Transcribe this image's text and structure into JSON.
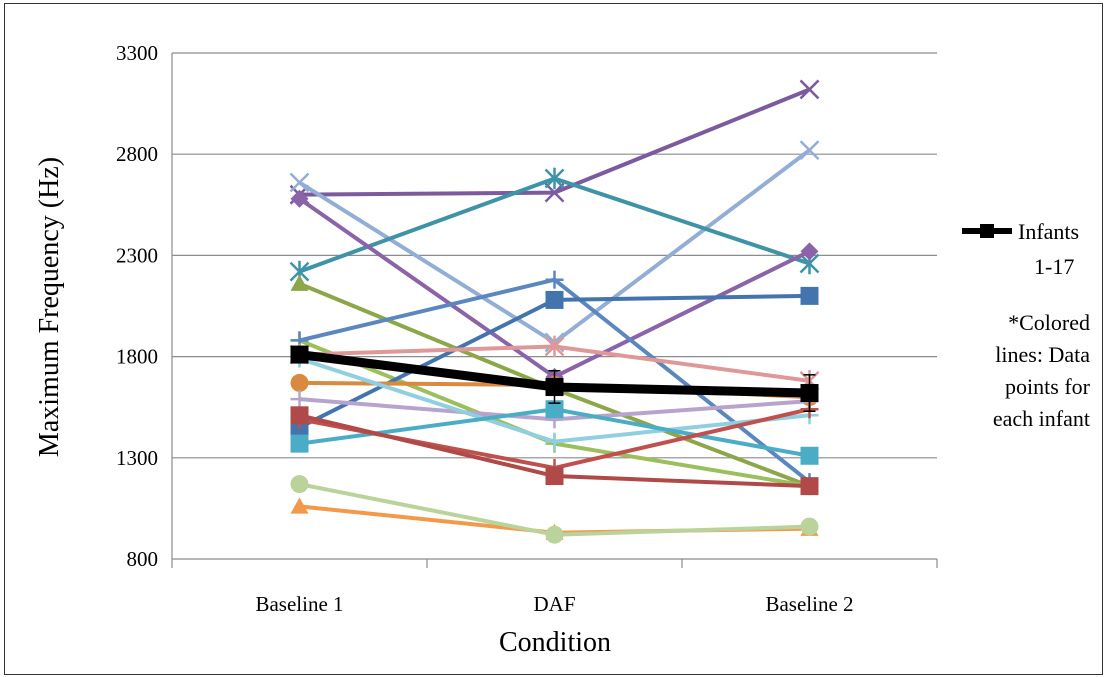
{
  "chart_data": {
    "type": "line",
    "title": "",
    "xlabel": "Condition",
    "ylabel": "Maximum Frequency (Hz)",
    "categories": [
      "Baseline 1",
      "DAF",
      "Baseline 2"
    ],
    "ylim": [
      800,
      3300
    ],
    "yticks": [
      800,
      1300,
      1800,
      2300,
      2800,
      3300
    ],
    "grid": true,
    "legend_position": "right",
    "mean_series": {
      "name_lines": [
        "Infants",
        "1-17"
      ],
      "values": [
        1810,
        1650,
        1620
      ],
      "error": [
        25,
        80,
        90
      ],
      "color": "#000000",
      "marker": "square"
    },
    "series": [
      {
        "values": [
          2600,
          2610,
          3120
        ],
        "color": "#7b5a9e",
        "marker": "x"
      },
      {
        "values": [
          2660,
          1870,
          2820
        ],
        "color": "#93aed6",
        "marker": "x"
      },
      {
        "values": [
          2220,
          2680,
          2260
        ],
        "color": "#3e93a6",
        "marker": "star"
      },
      {
        "values": [
          2580,
          1700,
          2320
        ],
        "color": "#8a63a8",
        "marker": "diamond"
      },
      {
        "values": [
          2160,
          1640,
          1160
        ],
        "color": "#8da64a",
        "marker": "triangle"
      },
      {
        "values": [
          1880,
          1370,
          1160
        ],
        "color": "#9cbf5e",
        "marker": "plus"
      },
      {
        "values": [
          1880,
          2180,
          1180
        ],
        "color": "#5b87c0",
        "marker": "plus"
      },
      {
        "values": [
          1450,
          2080,
          2100
        ],
        "color": "#4474ad",
        "marker": "square"
      },
      {
        "values": [
          1810,
          1850,
          1680
        ],
        "color": "#df9898",
        "marker": "star"
      },
      {
        "values": [
          1670,
          1660,
          1600
        ],
        "color": "#d98a3e",
        "marker": "circle"
      },
      {
        "values": [
          1590,
          1490,
          1580
        ],
        "color": "#b7a4cc",
        "marker": "plus"
      },
      {
        "values": [
          1790,
          1380,
          1510
        ],
        "color": "#8fcfe0",
        "marker": "plus"
      },
      {
        "values": [
          1370,
          1540,
          1310
        ],
        "color": "#4bacc6",
        "marker": "square"
      },
      {
        "values": [
          1490,
          1250,
          1540
        ],
        "color": "#c0504d",
        "marker": "plus"
      },
      {
        "values": [
          1510,
          1210,
          1160
        ],
        "color": "#b04a48",
        "marker": "square"
      },
      {
        "values": [
          1060,
          930,
          950
        ],
        "color": "#f2994a",
        "marker": "triangle"
      },
      {
        "values": [
          1170,
          920,
          960
        ],
        "color": "#b9d39a",
        "marker": "circle"
      }
    ],
    "annotation_lines": [
      "*Colored",
      "lines: Data",
      "points for",
      "each infant"
    ]
  }
}
